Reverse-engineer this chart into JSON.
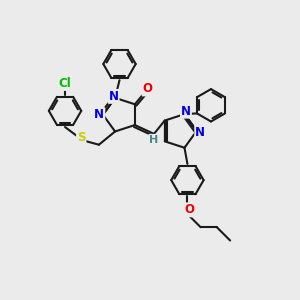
{
  "background_color": "#ebebeb",
  "bond_color": "#1a1a1a",
  "line_width": 1.5,
  "atom_colors": {
    "N": "#0000ee",
    "O": "#ee0000",
    "S": "#cccc00",
    "Cl": "#00bb00",
    "C": "#1a1a1a",
    "H": "#448888"
  }
}
